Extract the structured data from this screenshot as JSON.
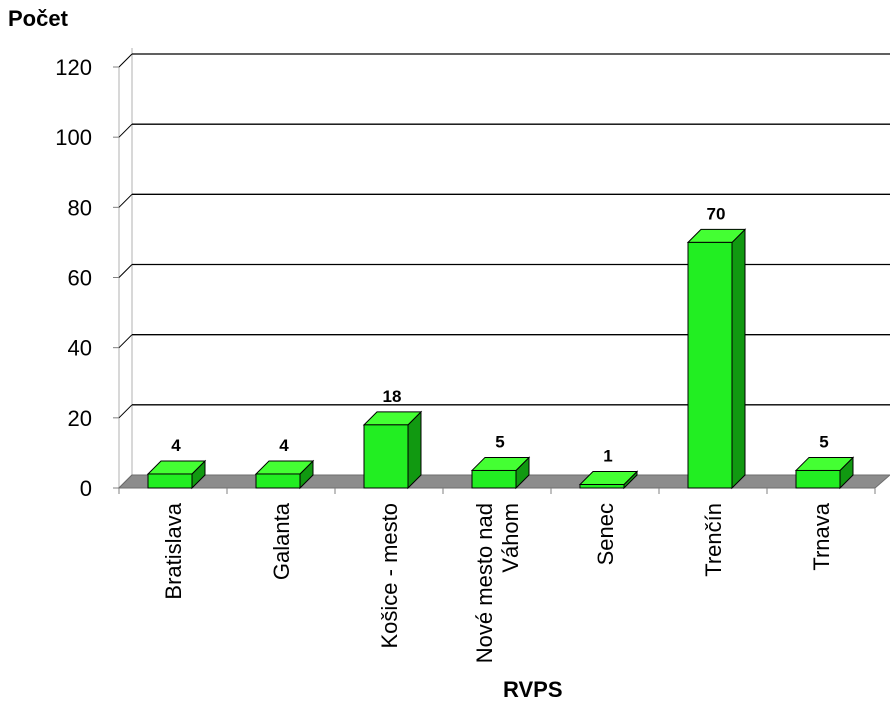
{
  "chart_data": {
    "type": "bar",
    "ylabel": "Počet",
    "xlabel": "RVPS",
    "ylim": [
      0,
      120
    ],
    "yticks": [
      0,
      20,
      40,
      60,
      80,
      100,
      120
    ],
    "categories": [
      "Bratislava",
      "Galanta",
      "Košice - mesto",
      "Nové mesto nad Váhom",
      "Senec",
      "Trenčín",
      "Trnava"
    ],
    "category_lines": [
      [
        "Bratislava"
      ],
      [
        "Galanta"
      ],
      [
        "Košice - mesto"
      ],
      [
        "Nové mesto nad",
        "Váhom"
      ],
      [
        "Senec"
      ],
      [
        "Trenčín"
      ],
      [
        "Trnava"
      ]
    ],
    "values": [
      4,
      4,
      18,
      5,
      1,
      70,
      5
    ],
    "data_labels": [
      "4",
      "4",
      "18",
      "5",
      "1",
      "70",
      "5"
    ],
    "grid": true,
    "style": "3d-column",
    "colors": {
      "bar_front": "#22ee22",
      "bar_top": "#44ff33",
      "bar_side": "#119911",
      "floor": "#8c8c8c",
      "gridline": "#000000",
      "wall": "#bfbfbf"
    }
  }
}
